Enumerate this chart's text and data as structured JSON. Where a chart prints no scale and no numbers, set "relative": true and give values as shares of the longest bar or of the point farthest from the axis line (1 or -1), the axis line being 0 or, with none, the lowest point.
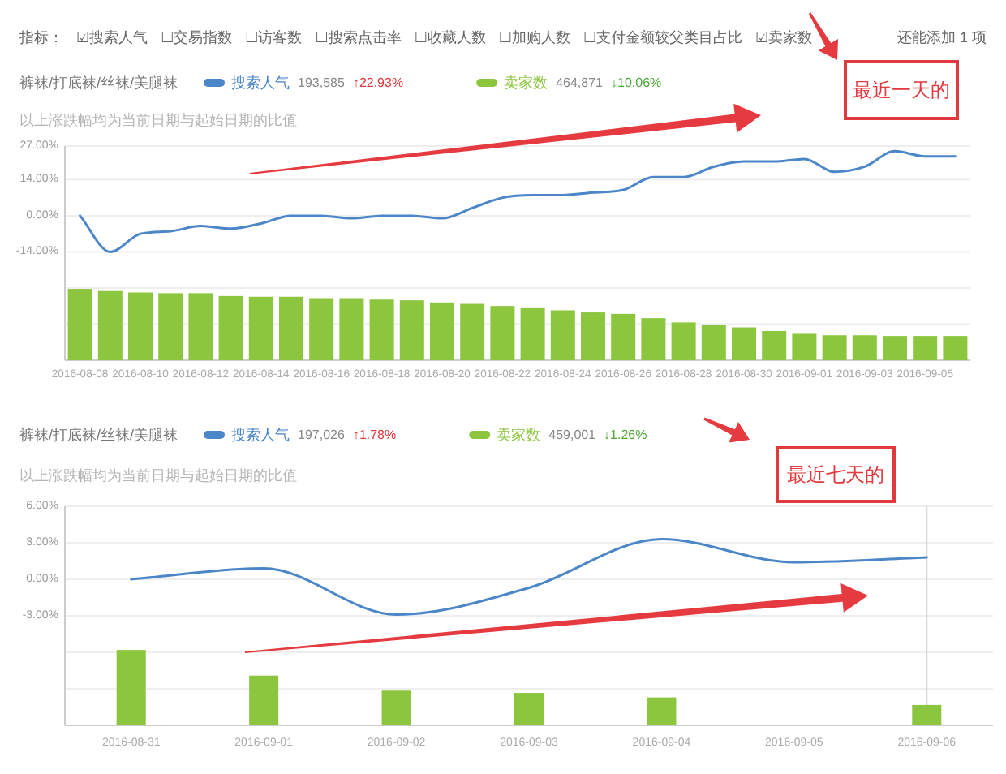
{
  "chart_data": [
    {
      "type": "other",
      "annotations": [
        "指标：",
        "☑搜索人气",
        "☐交易指数",
        "☐访客数",
        "☐搜索点击率",
        "☐收藏人数",
        "☐加购人数",
        "☐支付金额较父类目占比",
        "☑卖家数",
        "还能添加 1 项"
      ]
    },
    {
      "type": "line",
      "title": "裤袜/打底袜/丝袜/美腿袜",
      "subtitle": "以上涨跌幅均为当前日期与起始日期的比值",
      "categories": [
        "2016-08-08",
        null,
        "2016-08-10",
        null,
        "2016-08-12",
        null,
        "2016-08-14",
        null,
        "2016-08-16",
        null,
        "2016-08-18",
        null,
        "2016-08-20",
        null,
        "2016-08-22",
        null,
        "2016-08-24",
        null,
        "2016-08-26",
        null,
        "2016-08-28",
        null,
        "2016-08-30",
        null,
        "2016-09-01",
        null,
        "2016-09-03",
        null,
        "2016-09-05",
        null
      ],
      "series": [
        {
          "name": "搜索人气",
          "color": "#4a86c8",
          "values": [
            0,
            -14,
            -7,
            -6,
            -4,
            -5,
            -3,
            0,
            0,
            -1,
            0,
            0,
            -1,
            3,
            7,
            8,
            8,
            9,
            10,
            15,
            15,
            19,
            21,
            21,
            22,
            17,
            19,
            25,
            23,
            23
          ]
        }
      ],
      "ylim": [
        -56,
        27
      ],
      "yticks": [
        {
          "value": 27,
          "label": "27.00%"
        },
        {
          "value": 14,
          "label": "14.00%"
        },
        {
          "value": 0,
          "label": "0.00%"
        },
        {
          "value": -14,
          "label": "-14.00%"
        },
        {
          "value": -28,
          "label": null
        },
        {
          "value": -42,
          "label": null
        }
      ],
      "grid": "y",
      "legend": "top left",
      "annotations": [
        "193,585",
        "↑22.93%",
        "最近一天的"
      ]
    },
    {
      "type": "bar",
      "relative": true,
      "categories": [
        null,
        null,
        null,
        null,
        null,
        null,
        null,
        null,
        null,
        null,
        null,
        null,
        null,
        null,
        null,
        null,
        null,
        null,
        null,
        null,
        null,
        null,
        null,
        null,
        null,
        null,
        null,
        null,
        null,
        null
      ],
      "series": [
        {
          "name": "卖家数",
          "color": "#8cc63e",
          "values": [
            1,
            0.97,
            0.95,
            0.94,
            0.94,
            0.9,
            0.89,
            0.89,
            0.87,
            0.87,
            0.85,
            0.84,
            0.81,
            0.79,
            0.76,
            0.73,
            0.7,
            0.67,
            0.65,
            0.59,
            0.53,
            0.49,
            0.46,
            0.41,
            0.37,
            0.35,
            0.35,
            0.34,
            0.34,
            0.34
          ]
        }
      ],
      "legend": "top left",
      "annotations": [
        "464,871",
        "↓10.06%"
      ]
    },
    {
      "type": "line",
      "title": "裤袜/打底袜/丝袜/美腿袜",
      "subtitle": "以上涨跌幅均为当前日期与起始日期的比值",
      "categories": [
        "2016-08-31",
        "2016-09-01",
        "2016-09-02",
        "2016-09-03",
        "2016-09-04",
        "2016-09-05",
        "2016-09-06"
      ],
      "series": [
        {
          "name": "搜索人气",
          "color": "#4a86c8",
          "values": [
            0,
            0.9,
            -2.9,
            -0.7,
            3.3,
            1.4,
            1.8
          ]
        }
      ],
      "ylim": [
        -12,
        6
      ],
      "yticks": [
        {
          "value": 6,
          "label": "6.00%"
        },
        {
          "value": 3,
          "label": "3.00%"
        },
        {
          "value": 0,
          "label": "0.00%"
        },
        {
          "value": -3,
          "label": "-3.00%"
        },
        {
          "value": -6,
          "label": null
        },
        {
          "value": -9,
          "label": null
        }
      ],
      "grid": "y",
      "legend": "top left",
      "ref_lines": [
        {
          "axis": "x",
          "value": "2016-09-06",
          "color": "#d9d9d9"
        }
      ],
      "annotations": [
        "197,026",
        "↑1.78%",
        "最近七天的"
      ]
    },
    {
      "type": "bar",
      "relative": true,
      "categories": [
        null,
        null,
        null,
        null,
        null,
        null,
        null
      ],
      "series": [
        {
          "name": "卖家数",
          "color": "#8cc63e",
          "values": [
            1,
            0.66,
            0.46,
            0.43,
            0.37,
            null,
            0.27
          ]
        }
      ],
      "legend": "top left",
      "annotations": [
        "459,001",
        "↓1.26%"
      ]
    }
  ]
}
